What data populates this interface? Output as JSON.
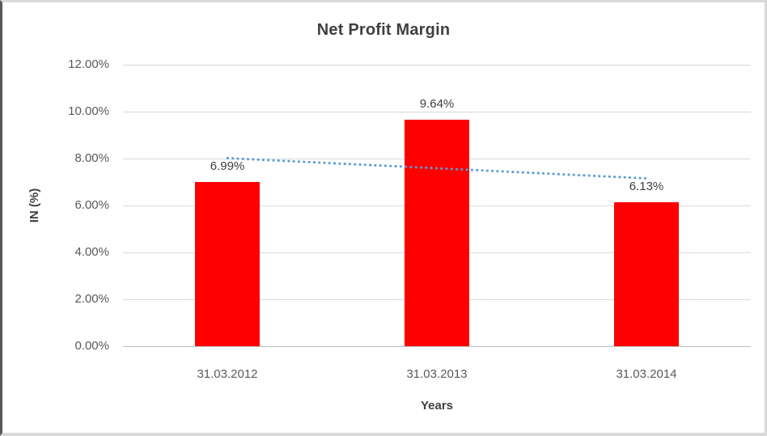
{
  "chart_data": {
    "type": "bar",
    "title": "Net Profit Margin",
    "categories": [
      "31.03.2012",
      "31.03.2013",
      "31.03.2014"
    ],
    "values": [
      6.99,
      9.64,
      6.13
    ],
    "data_labels": [
      "6.99%",
      "9.64%",
      "6.13%"
    ],
    "xlabel": "Years",
    "ylabel": "IN (%)",
    "ylim": [
      0,
      12
    ],
    "ytick_step": 2,
    "ytick_labels": [
      "12.00%",
      "10.00%",
      "8.00%",
      "6.00%",
      "4.00%",
      "2.00%",
      "0.00%"
    ],
    "grid": "horizontal",
    "legend": "none",
    "bar_color": "#FF0000",
    "gridline_color": "#D9D9D9",
    "axis_line_color": "#BFBFBF",
    "trendline": {
      "kind": "linear-dotted",
      "color": "#5B9BD5"
    }
  }
}
